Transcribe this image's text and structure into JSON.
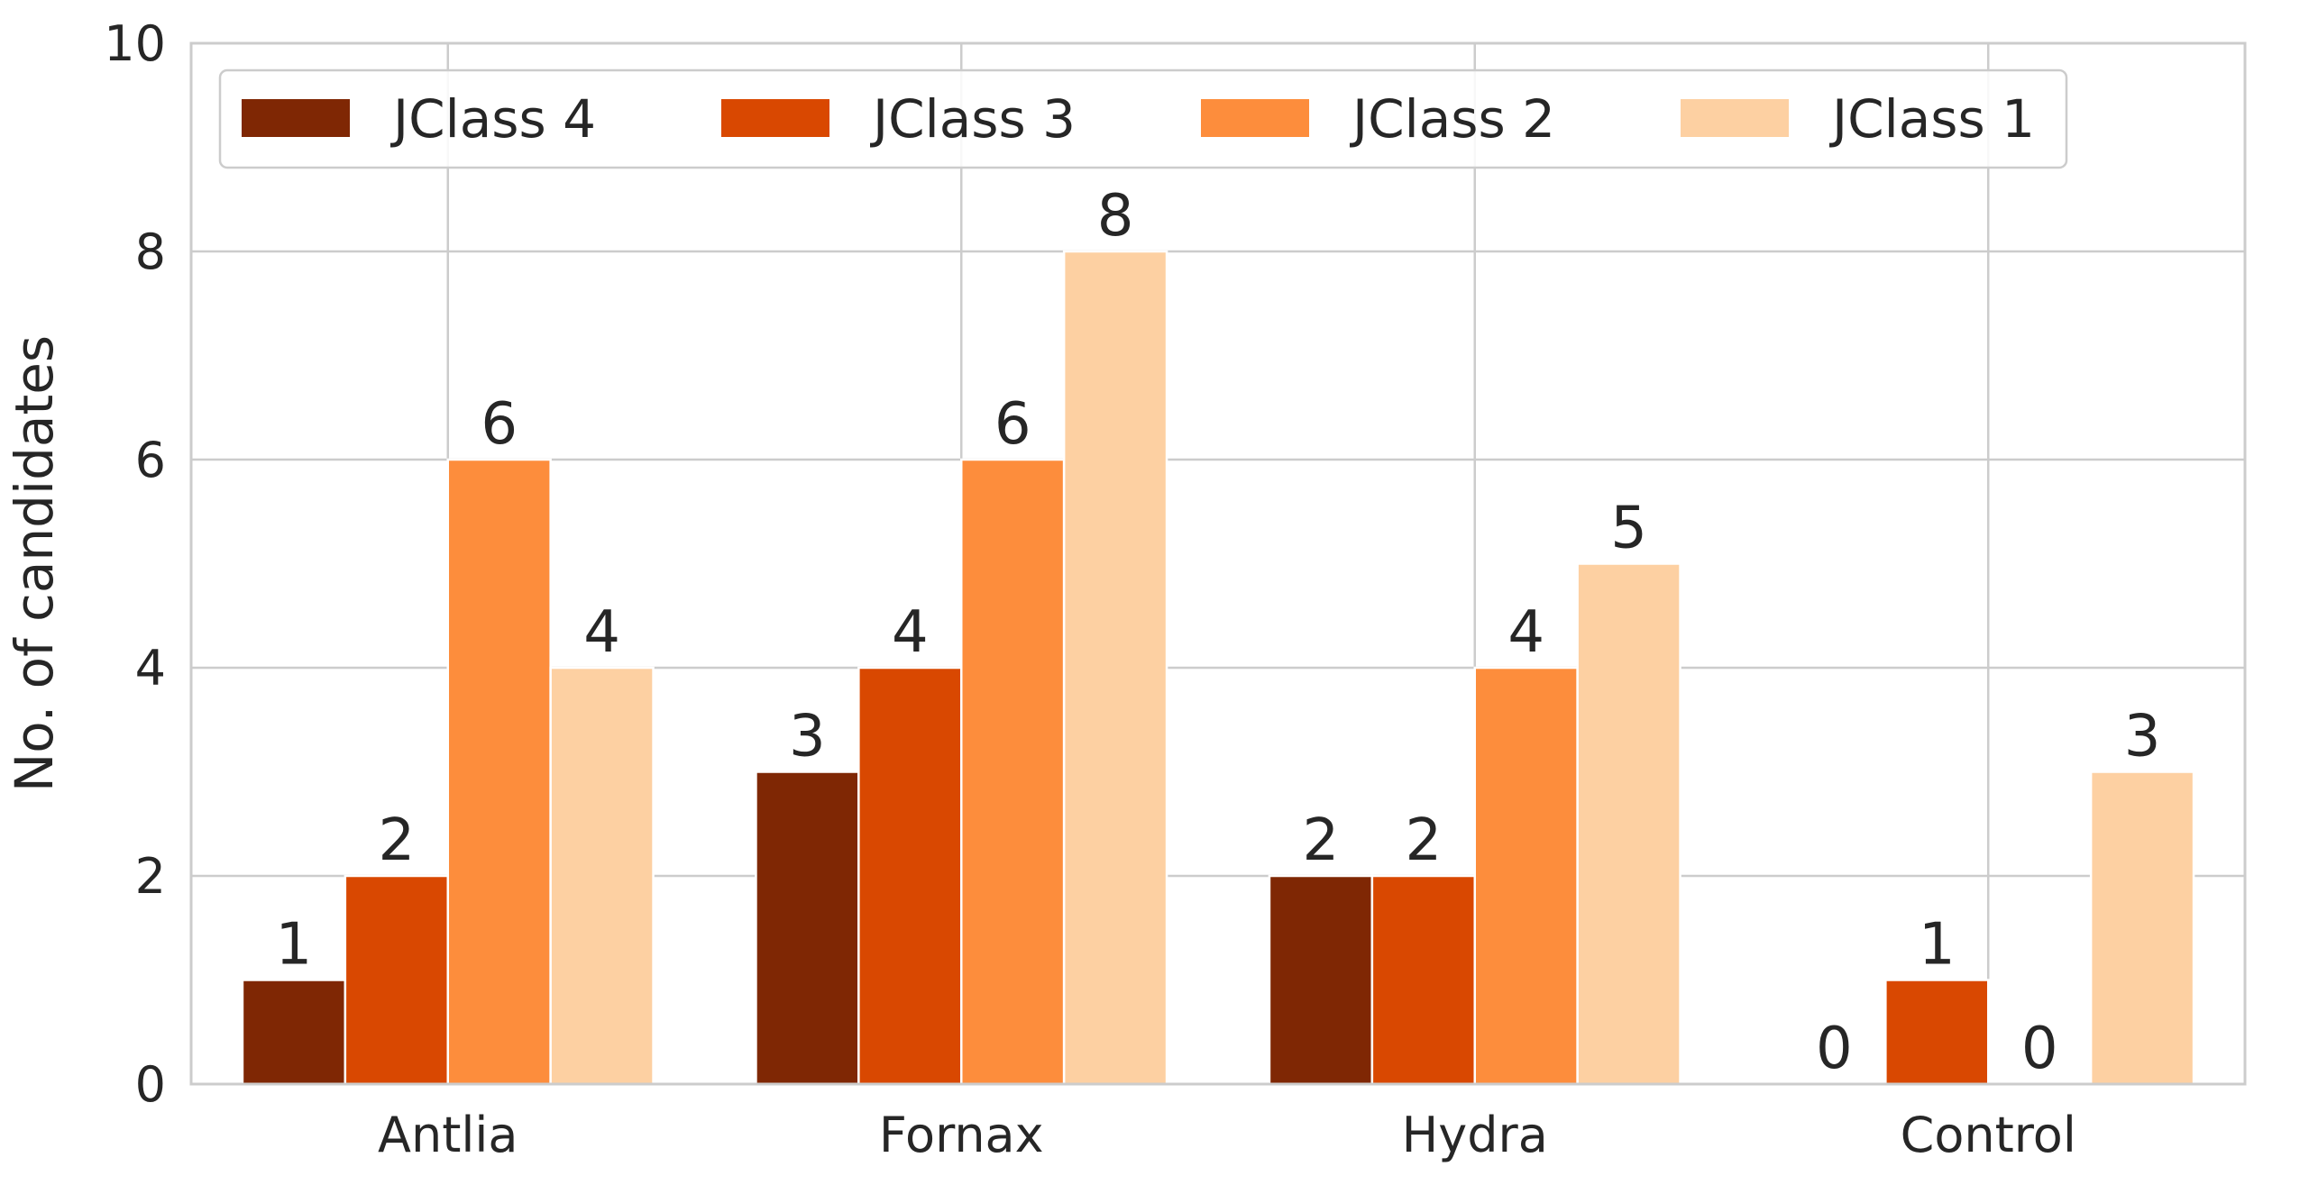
{
  "chart_data": {
    "type": "bar",
    "categories": [
      "Antlia",
      "Fornax",
      "Hydra",
      "Control"
    ],
    "series": [
      {
        "name": "JClass 4",
        "values": [
          1,
          3,
          2,
          0
        ],
        "color": "#7f2704"
      },
      {
        "name": "JClass 3",
        "values": [
          2,
          4,
          2,
          1
        ],
        "color": "#d94801"
      },
      {
        "name": "JClass 2",
        "values": [
          6,
          6,
          4,
          0
        ],
        "color": "#fd8d3c"
      },
      {
        "name": "JClass 1",
        "values": [
          4,
          8,
          5,
          3
        ],
        "color": "#fdd0a2"
      }
    ],
    "xlabel": "",
    "ylabel": "No. of candidates",
    "ylim": [
      0,
      10
    ],
    "yticks": [
      0,
      2,
      4,
      6,
      8,
      10
    ],
    "grid": true,
    "legend_position": "top-left",
    "data_labels": true
  }
}
